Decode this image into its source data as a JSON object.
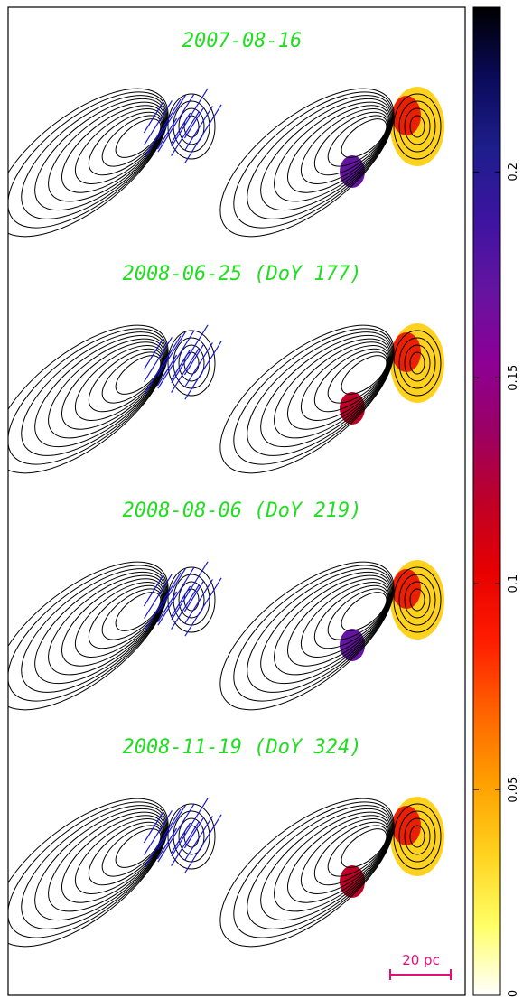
{
  "chart_data": {
    "type": "heatmap",
    "description_panels": "contour maps with polarization vectors (left) and fractional polarization color maps (right)",
    "epochs": [
      {
        "label": "2007-08-16"
      },
      {
        "label": "2008-06-25 (DoY 177)"
      },
      {
        "label": "2008-08-06 (DoY 219)"
      },
      {
        "label": "2008-11-19 (DoY 324)"
      }
    ],
    "colorbar": {
      "orientation": "vertical",
      "range": [
        0,
        0.24
      ],
      "ticks": [
        {
          "value": 0,
          "label": "0"
        },
        {
          "value": 0.05,
          "label": "0.05"
        },
        {
          "value": 0.1,
          "label": "0.1"
        },
        {
          "value": 0.15,
          "label": "0.15"
        },
        {
          "value": 0.2,
          "label": "0.2"
        }
      ],
      "colors": [
        "#ffffff",
        "#ffff66",
        "#ffd21e",
        "#ffa000",
        "#ff6400",
        "#ff1e00",
        "#e60000",
        "#be0028",
        "#9b0064",
        "#8c0096",
        "#6414a0",
        "#3c14a0",
        "#1e1e8c",
        "#0a0a5a",
        "#000000"
      ]
    },
    "scale_bar": {
      "label": "20 pc"
    },
    "colors": {
      "epoch_label": "#22dd22",
      "vectors": "#1a1ad6",
      "scale_bar": "#e0107a",
      "contours": "#000000"
    }
  }
}
